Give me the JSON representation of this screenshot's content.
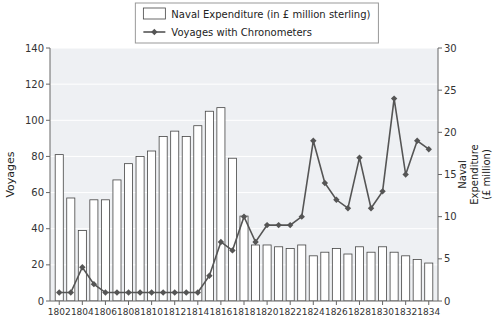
{
  "chart_data": {
    "type": "bar",
    "x": [
      1802,
      1803,
      1804,
      1805,
      1806,
      1807,
      1808,
      1809,
      1810,
      1811,
      1812,
      1813,
      1814,
      1815,
      1816,
      1817,
      1818,
      1819,
      1820,
      1821,
      1822,
      1823,
      1824,
      1825,
      1826,
      1827,
      1828,
      1829,
      1830,
      1831,
      1832,
      1833,
      1834
    ],
    "xlim": [
      1801.2,
      1834.8
    ],
    "xticks": [
      1802,
      1804,
      1806,
      1808,
      1810,
      1812,
      1814,
      1816,
      1818,
      1820,
      1822,
      1824,
      1826,
      1828,
      1830,
      1832,
      1834
    ],
    "ylim": [
      0,
      140
    ],
    "yticks": [
      0,
      20,
      40,
      60,
      80,
      100,
      120,
      140
    ],
    "y2lim": [
      0,
      30
    ],
    "y2ticks": [
      0,
      5,
      10,
      15,
      20,
      25,
      30
    ],
    "y_label": "Voyages",
    "y2_label": "Naval\nExpenditure\n(£ million)",
    "grid": true,
    "legend": "upper left",
    "series": [
      {
        "name": "Naval Expenditure (in £ million sterling)",
        "type": "bar",
        "color": "#ffffff",
        "values": [
          81,
          57,
          39,
          56,
          56,
          67,
          76,
          80,
          83,
          91,
          94,
          91,
          97,
          105,
          107,
          79,
          47,
          31,
          31,
          30,
          29,
          31,
          25,
          27,
          29,
          26,
          30,
          27,
          30,
          27,
          25,
          23,
          21
        ]
      },
      {
        "name": "Voyages with Chronometers",
        "type": "line",
        "axis": "y2",
        "color": "#555555",
        "marker": "diamond",
        "values": [
          1,
          1,
          4,
          2,
          1,
          1,
          1,
          1,
          1,
          1,
          1,
          1,
          1,
          3,
          7,
          6,
          10,
          7,
          9,
          9,
          9,
          10,
          19,
          14,
          12,
          11,
          17,
          11,
          13,
          24,
          15,
          19,
          18
        ]
      }
    ]
  }
}
